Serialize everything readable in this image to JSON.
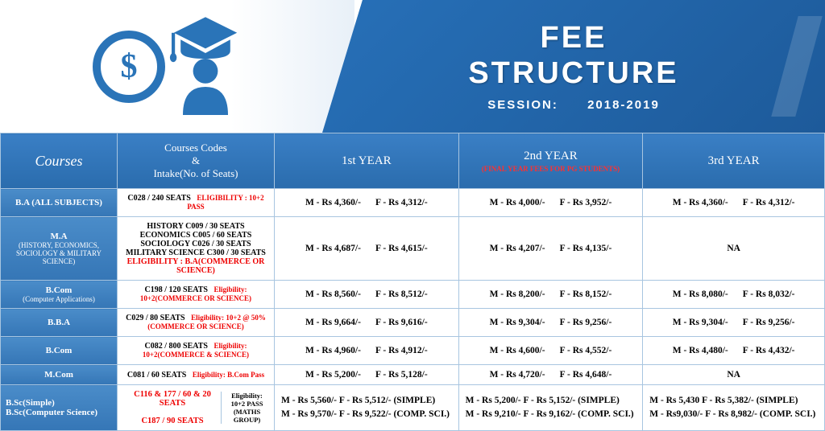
{
  "header": {
    "title_line1": "FEE",
    "title_line2": "STRUCTURE",
    "session_label": "SESSION:",
    "session_value": "2018-2019",
    "coin_symbol": "$"
  },
  "columns": {
    "courses": "Courses",
    "codes_line1": "Courses Codes",
    "codes_amp": "&",
    "codes_line2": "Intake(No. of Seats)",
    "year1": "1st YEAR",
    "year2": "2nd YEAR",
    "year2_sub": "(FINAL YEAR FEES FOR PG STUDENTS)",
    "year3": "3rd YEAR"
  },
  "rows": [
    {
      "course": "B.A (ALL SUBJECTS)",
      "codes": "C028 / 240 SEATS",
      "elig": "ELIGIBILITY : 10+2 PASS",
      "y1m": "M - Rs 4,360/-",
      "y1f": "F - Rs 4,312/-",
      "y2m": "M - Rs 4,000/-",
      "y2f": "F - Rs 3,952/-",
      "y3m": "M - Rs 4,360/-",
      "y3f": "F - Rs 4,312/-"
    },
    {
      "course": "M.A",
      "course_sub": "(HISTORY, ECONOMICS, SOCIOLOGY & MILITARY SCIENCE)",
      "codes_multi": [
        "HISTORY C009 / 30 SEATS",
        "ECONOMICS C005 / 60 SEATS",
        "SOCIOLOGY C026 / 30 SEATS",
        "MILITARY SCIENCE C300 / 30 SEATS"
      ],
      "elig": "ELIGIBILITY : B.A(COMMERCE OR SCIENCE)",
      "y1m": "M - Rs 4,687/-",
      "y1f": "F - Rs 4,615/-",
      "y2m": "M - Rs 4,207/-",
      "y2f": "F - Rs 4,135/-",
      "y3_na": "NA"
    },
    {
      "course": "B.Com",
      "course_sub": "(Computer Applications)",
      "codes": "C198 / 120 SEATS",
      "elig": "Eligibility: 10+2(COMMERCE OR SCIENCE)",
      "y1m": "M - Rs 8,560/-",
      "y1f": "F - Rs 8,512/-",
      "y2m": "M - Rs 8,200/-",
      "y2f": "F - Rs 8,152/-",
      "y3m": "M - Rs 8,080/-",
      "y3f": "F - Rs 8,032/-"
    },
    {
      "course": "B.B.A",
      "codes": "C029 / 80 SEATS",
      "elig": "Eligibility: 10+2 @ 50%(COMMERCE OR SCIENCE)",
      "y1m": "M - Rs 9,664/-",
      "y1f": "F - Rs 9,616/-",
      "y2m": "M - Rs 9,304/-",
      "y2f": "F - Rs 9,256/-",
      "y3m": "M - Rs 9,304/-",
      "y3f": "F - Rs 9,256/-"
    },
    {
      "course": "B.Com",
      "codes": "C082 / 800 SEATS",
      "elig": "Eligibility: 10+2(COMMERCE & SCIENCE)",
      "y1m": "M - Rs 4,960/-",
      "y1f": "F - Rs 4,912/-",
      "y2m": "M - Rs 4,600/-",
      "y2f": "F - Rs 4,552/-",
      "y3m": "M - Rs 4,480/-",
      "y3f": "F - Rs 4,432/-"
    },
    {
      "course": "M.Com",
      "codes": "C081 / 60 SEATS",
      "elig": "Eligibility: B.Com Pass",
      "y1m": "M - Rs 5,200/-",
      "y1f": "F - Rs 5,128/-",
      "y2m": "M - Rs 4,720/-",
      "y2f": "F - Rs 4,648/-",
      "y3_na": "NA"
    }
  ],
  "bsc": {
    "course_l1": "B.Sc(Simple)",
    "course_l2": "B.Sc(Computer Science)",
    "codes_l1": "C116 & 177 / 60 & 20 SEATS",
    "codes_l2": "C187 / 90 SEATS",
    "elig": "Eligibility: 10+2 PASS (MATHS GROUP)",
    "y1_l1": "M - Rs 5,560/-    F - Rs 5,512/- (SIMPLE)",
    "y1_l2": "M - Rs 9,570/-    F - Rs 9,522/- (COMP. SCI.)",
    "y2_l1": "M - Rs 5,200/-    F - Rs 5,152/-  (SIMPLE)",
    "y2_l2": "M - Rs 9,210/-    F - Rs 9,162/- (COMP. SCI.)",
    "y3_l1": "M - Rs 5,430    F - Rs 5,382/-  (SIMPLE)",
    "y3_l2": "M - Rs9,030/-    F - Rs 8,982/-  (COMP. SCI.)"
  },
  "colors": {
    "header_blue": "#2770b8",
    "cell_blue": "#3a7fc5",
    "border": "#a8c5e0",
    "red": "#e00000"
  }
}
